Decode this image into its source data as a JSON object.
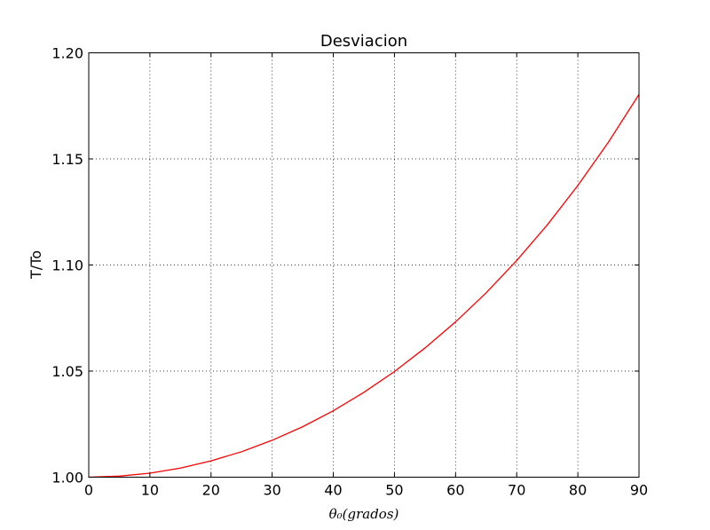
{
  "chart_data": {
    "type": "line",
    "title": "Desviacion",
    "xlabel": "θ₀(grados)",
    "ylabel": "T/To",
    "xlim": [
      0,
      90
    ],
    "ylim": [
      1.0,
      1.2
    ],
    "xticks": [
      0,
      10,
      20,
      30,
      40,
      50,
      60,
      70,
      80,
      90
    ],
    "xtick_labels": [
      "0",
      "10",
      "20",
      "30",
      "40",
      "50",
      "60",
      "70",
      "80",
      "90"
    ],
    "yticks": [
      1.0,
      1.05,
      1.1,
      1.15,
      1.2
    ],
    "ytick_labels": [
      "1.00",
      "1.05",
      "1.10",
      "1.15",
      "1.20"
    ],
    "grid": true,
    "series": [
      {
        "color": "#ff0000",
        "x": [
          0,
          5,
          10,
          15,
          20,
          25,
          30,
          35,
          40,
          45,
          50,
          55,
          60,
          65,
          70,
          75,
          80,
          85,
          90
        ],
        "y": [
          1.0,
          1.0005,
          1.0019,
          1.0043,
          1.0077,
          1.012,
          1.0174,
          1.0238,
          1.0313,
          1.04,
          1.0498,
          1.0609,
          1.0732,
          1.0869,
          1.1021,
          1.1189,
          1.1375,
          1.1579,
          1.1804
        ]
      }
    ]
  }
}
